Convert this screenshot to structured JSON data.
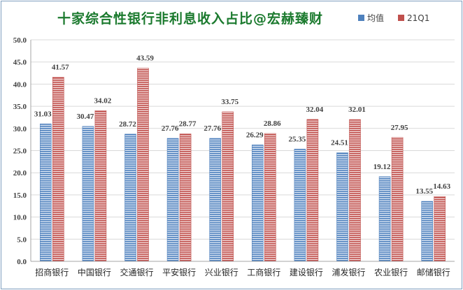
{
  "chart_data": {
    "type": "bar",
    "title": "十家综合性银行非利息收入占比@宏赫臻财",
    "categories": [
      "招商银行",
      "中国银行",
      "交通银行",
      "平安银行",
      "兴业银行",
      "工商银行",
      "建设银行",
      "浦发银行",
      "农业银行",
      "邮储银行"
    ],
    "series": [
      {
        "name": "均值",
        "values": [
          31.03,
          30.47,
          28.72,
          27.76,
          27.76,
          26.29,
          25.35,
          24.51,
          19.12,
          13.55
        ],
        "color": "#4f81bd",
        "labels": [
          "31.03",
          "30.47",
          "28.72",
          "27.76",
          "27.76",
          "26.29",
          "25.35",
          "24.51",
          "19.12",
          "13.55"
        ]
      },
      {
        "name": "21Q1",
        "values": [
          41.57,
          34.02,
          43.59,
          28.77,
          33.75,
          28.86,
          32.04,
          32.01,
          27.95,
          14.63
        ],
        "color": "#c0504d",
        "labels": [
          "41.57",
          "34.02",
          "43.59",
          "28.77",
          "33.75",
          "28.86",
          "32.04",
          "32.01",
          "27.95",
          "14.63"
        ]
      }
    ],
    "ylim": [
      0,
      50
    ],
    "yticks": [
      "0.0",
      "5.0",
      "10.0",
      "15.0",
      "20.0",
      "25.0",
      "30.0",
      "35.0",
      "40.0",
      "45.0",
      "50.0"
    ],
    "grid": true,
    "legend": "top-right"
  }
}
